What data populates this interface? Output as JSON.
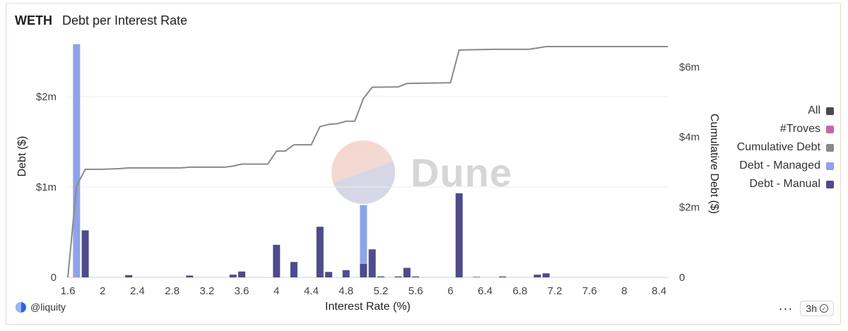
{
  "header": {
    "asset": "WETH",
    "title": "Debt per Interest Rate"
  },
  "watermark": {
    "text": "Dune"
  },
  "legend": [
    {
      "label": "All",
      "color": "#4a4a4a"
    },
    {
      "label": "#Troves",
      "color": "#c865a8"
    },
    {
      "label": "Cumulative Debt",
      "color": "#8a8a8a"
    },
    {
      "label": "Debt - Managed",
      "color": "#8fa3ea"
    },
    {
      "label": "Debt - Manual",
      "color": "#4f4b8c"
    }
  ],
  "footer": {
    "author": "@liquity",
    "more": "···",
    "age": "3h"
  },
  "chart_data": {
    "type": "bar",
    "xlabel": "Interest Rate (%)",
    "ylabel": "Debt ($)",
    "y2label": "Cumulative Debt ($)",
    "xlim": [
      1.6,
      8.5
    ],
    "ylim": [
      0,
      2.6
    ],
    "y2lim": [
      0,
      6.7
    ],
    "x_ticks": [
      "1.6",
      "2",
      "2.4",
      "2.8",
      "3.2",
      "3.6",
      "4",
      "4.4",
      "4.8",
      "5.2",
      "5.6",
      "6",
      "6.4",
      "6.8",
      "7.2",
      "7.6",
      "8",
      "8.4"
    ],
    "y_ticks": [
      {
        "v": 0,
        "label": "0"
      },
      {
        "v": 1,
        "label": "$1m"
      },
      {
        "v": 2,
        "label": "$2m"
      }
    ],
    "y2_ticks": [
      {
        "v": 0,
        "label": "0"
      },
      {
        "v": 2,
        "label": "$2m"
      },
      {
        "v": 4,
        "label": "$4m"
      },
      {
        "v": 6,
        "label": "$6m"
      }
    ],
    "series": [
      {
        "name": "Debt - Managed",
        "color": "#8fa3ea",
        "points": [
          [
            1.7,
            2.58
          ],
          [
            5.0,
            0.65
          ]
        ]
      },
      {
        "name": "Debt - Manual",
        "color": "#4f4b8c",
        "points": [
          [
            1.8,
            0.52
          ],
          [
            2.3,
            0.025
          ],
          [
            3.0,
            0.02
          ],
          [
            3.5,
            0.03
          ],
          [
            3.6,
            0.065
          ],
          [
            4.0,
            0.36
          ],
          [
            4.2,
            0.17
          ],
          [
            4.5,
            0.56
          ],
          [
            4.6,
            0.06
          ],
          [
            4.8,
            0.08
          ],
          [
            5.0,
            0.15
          ],
          [
            5.1,
            0.31
          ],
          [
            5.2,
            0.01
          ],
          [
            5.4,
            0.01
          ],
          [
            5.5,
            0.105
          ],
          [
            5.6,
            0.01
          ],
          [
            6.1,
            0.93
          ],
          [
            6.3,
            0.005
          ],
          [
            6.6,
            0.01
          ],
          [
            7.0,
            0.03
          ],
          [
            7.1,
            0.045
          ]
        ]
      },
      {
        "name": "Cumulative Debt",
        "color": "#8a8a8a",
        "type": "line",
        "points": [
          [
            1.6,
            0
          ],
          [
            1.7,
            2.6
          ],
          [
            1.8,
            3.08
          ],
          [
            2.0,
            3.08
          ],
          [
            2.2,
            3.1
          ],
          [
            2.3,
            3.12
          ],
          [
            2.9,
            3.12
          ],
          [
            3.0,
            3.14
          ],
          [
            3.4,
            3.14
          ],
          [
            3.5,
            3.17
          ],
          [
            3.6,
            3.23
          ],
          [
            3.9,
            3.23
          ],
          [
            4.0,
            3.6
          ],
          [
            4.1,
            3.6
          ],
          [
            4.2,
            3.78
          ],
          [
            4.4,
            3.78
          ],
          [
            4.5,
            4.3
          ],
          [
            4.6,
            4.36
          ],
          [
            4.7,
            4.38
          ],
          [
            4.8,
            4.45
          ],
          [
            4.9,
            4.45
          ],
          [
            5.0,
            5.1
          ],
          [
            5.1,
            5.42
          ],
          [
            5.4,
            5.43
          ],
          [
            5.5,
            5.53
          ],
          [
            6.0,
            5.55
          ],
          [
            6.1,
            6.48
          ],
          [
            6.5,
            6.5
          ],
          [
            6.9,
            6.5
          ],
          [
            7.0,
            6.54
          ],
          [
            7.1,
            6.58
          ],
          [
            8.5,
            6.58
          ]
        ]
      }
    ]
  }
}
